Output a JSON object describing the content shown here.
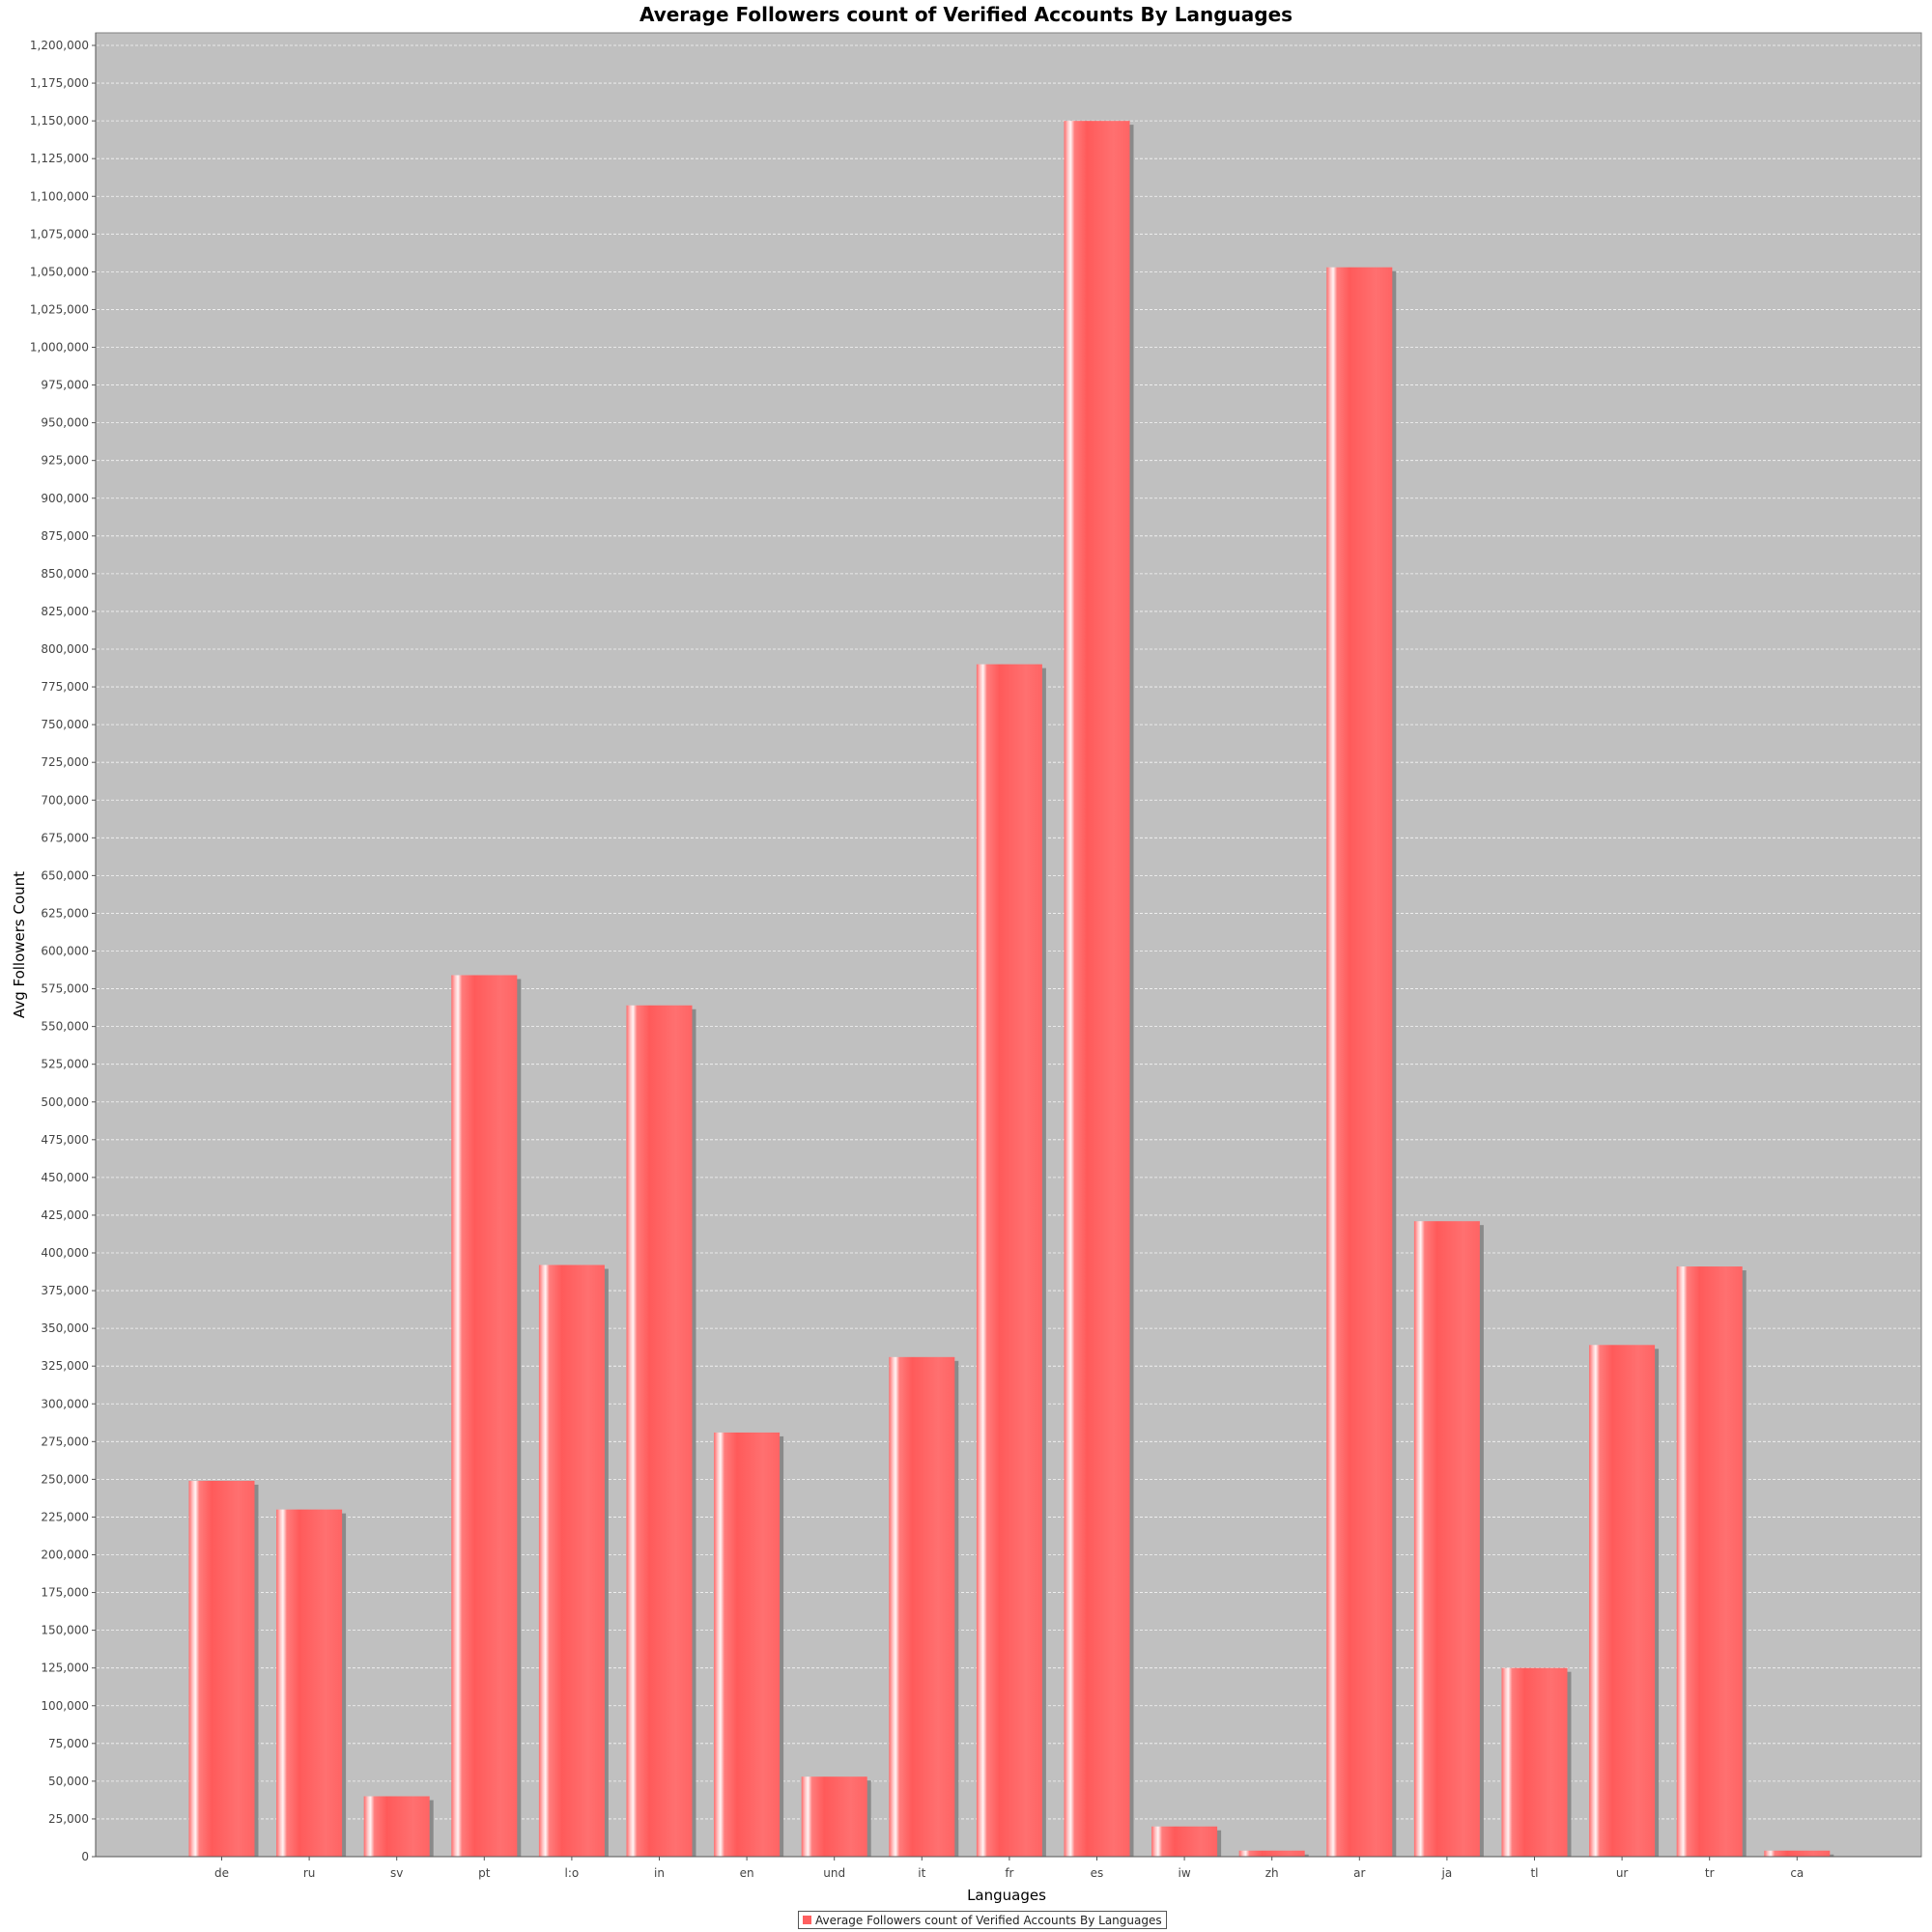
{
  "chart_data": {
    "type": "bar",
    "title": "Average Followers count of Verified Accounts By Languages",
    "xlabel": "Languages",
    "ylabel": "Avg Followers Count",
    "categories": [
      "de",
      "ru",
      "sv",
      "pt",
      "l:o",
      "in",
      "en",
      "und",
      "it",
      "fr",
      "es",
      "iw",
      "zh",
      "ar",
      "ja",
      "tl",
      "ur",
      "tr",
      "ca"
    ],
    "series": [
      {
        "name": "Average Followers count of Verified Accounts By Languages",
        "values": [
          249000,
          230000,
          40000,
          584000,
          392000,
          564000,
          281000,
          53000,
          331000,
          790000,
          1150000,
          20000,
          4000,
          1053000,
          421000,
          125000,
          339000,
          391000,
          4000
        ]
      }
    ],
    "ylim": [
      0,
      1200000
    ],
    "ytick_step": 25000,
    "grid": true,
    "legend": "bottom-center",
    "colors": {
      "bar": "#ff5f5f",
      "bar_highlight": "#fff0f0",
      "bar_shadow": "#8a8a8a",
      "plot_background": "#c0c0c0",
      "gridline": "#ffffff"
    }
  }
}
